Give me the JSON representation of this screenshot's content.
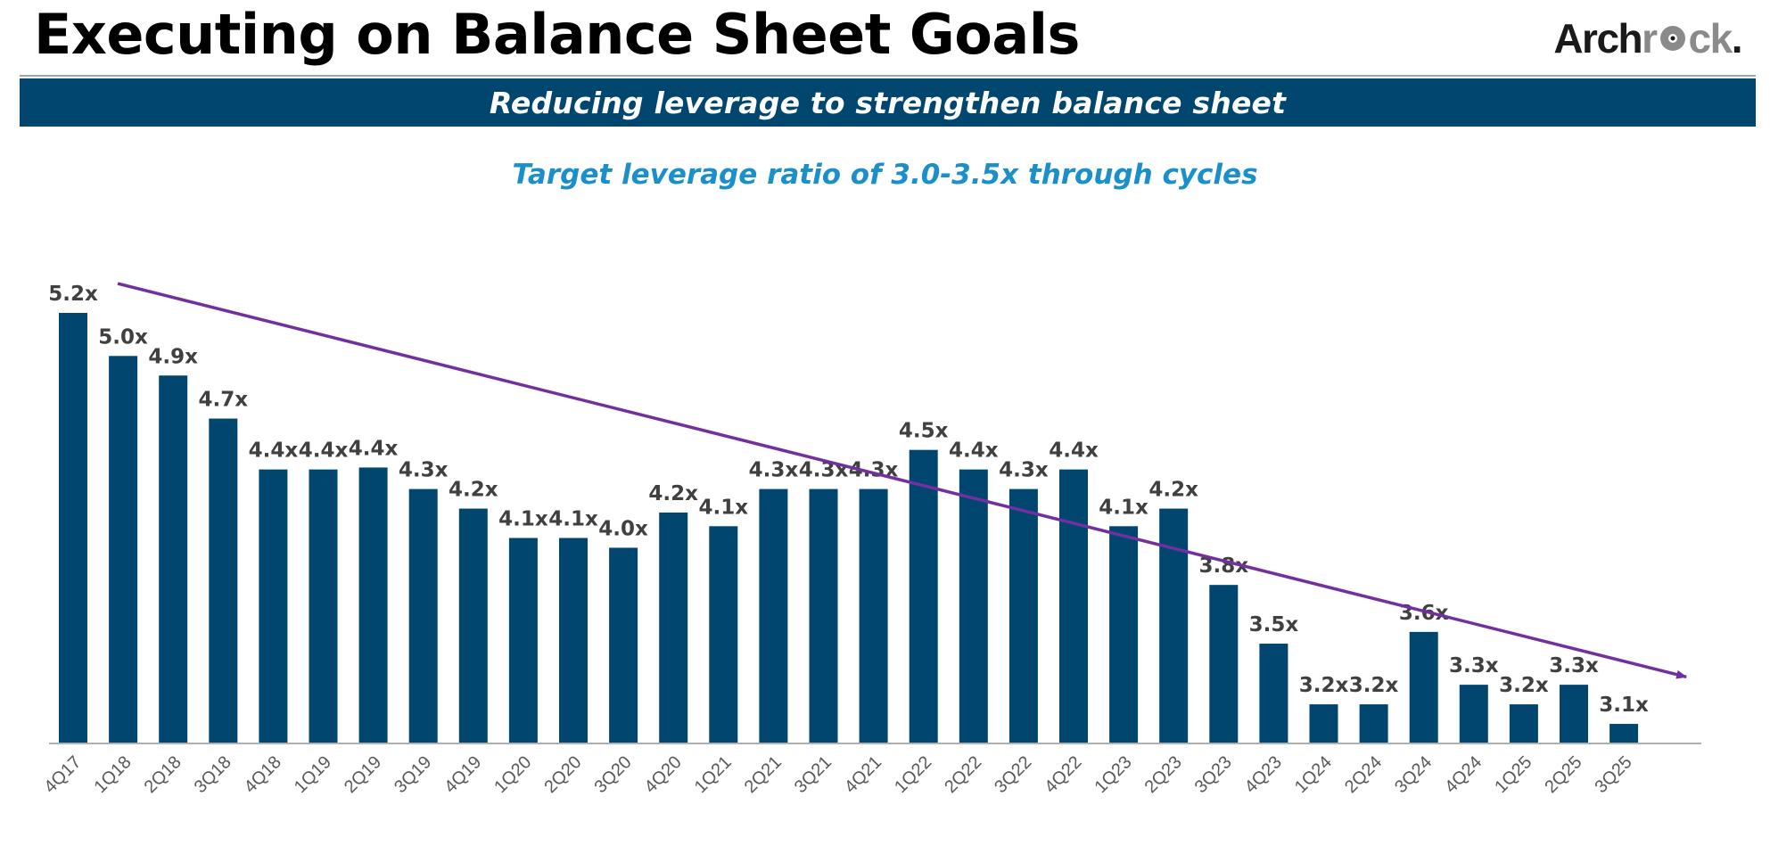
{
  "header": {
    "title": "Executing on Balance Sheet Goals",
    "logo_part1": "Arch",
    "logo_part2": "r",
    "logo_part3": "ck",
    "logo_dot": "."
  },
  "banner": {
    "text": "Reducing leverage to strengthen balance sheet"
  },
  "subtitle": "Target leverage ratio of 3.0-3.5x through cycles",
  "colors": {
    "bar": "#00466f",
    "trend": "#7030a0",
    "banner": "#00466f",
    "subtitle": "#1a8fc9"
  },
  "chart_data": {
    "type": "bar",
    "title": "",
    "xlabel": "",
    "ylabel": "",
    "ylim": [
      3.0,
      5.25
    ],
    "grid": false,
    "categories": [
      "4Q17",
      "1Q18",
      "2Q18",
      "3Q18",
      "4Q18",
      "1Q19",
      "2Q19",
      "3Q19",
      "4Q19",
      "1Q20",
      "2Q20",
      "3Q20",
      "4Q20",
      "1Q21",
      "2Q21",
      "3Q21",
      "4Q21",
      "1Q22",
      "2Q22",
      "3Q22",
      "4Q22",
      "1Q23",
      "2Q23",
      "3Q23",
      "4Q23",
      "1Q24",
      "2Q24",
      "3Q24",
      "4Q24",
      "1Q25",
      "2Q25",
      "3Q25"
    ],
    "values": [
      5.2,
      4.98,
      4.88,
      4.66,
      4.4,
      4.4,
      4.41,
      4.3,
      4.2,
      4.05,
      4.05,
      4.0,
      4.18,
      4.11,
      4.3,
      4.3,
      4.3,
      4.5,
      4.4,
      4.3,
      4.4,
      4.11,
      4.2,
      3.81,
      3.51,
      3.2,
      3.2,
      3.57,
      3.3,
      3.2,
      3.3,
      3.1
    ],
    "data_labels": [
      "5.2x",
      "5.0x",
      "4.9x",
      "4.7x",
      "4.4x",
      "4.4x",
      "4.4x",
      "4.3x",
      "4.2x",
      "4.1x",
      "4.1x",
      "4.0x",
      "4.2x",
      "4.1x",
      "4.3x",
      "4.3x",
      "4.3x",
      "4.5x",
      "4.4x",
      "4.3x",
      "4.4x",
      "4.1x",
      "4.2x",
      "3.8x",
      "3.5x",
      "3.2x",
      "3.2x",
      "3.6x",
      "3.3x",
      "3.2x",
      "3.3x",
      "3.1x"
    ],
    "annotations": [
      {
        "type": "trend-arrow",
        "from_category": "4Q17",
        "to_category": "3Q25",
        "from_value": 5.35,
        "to_value": 3.34
      }
    ]
  }
}
